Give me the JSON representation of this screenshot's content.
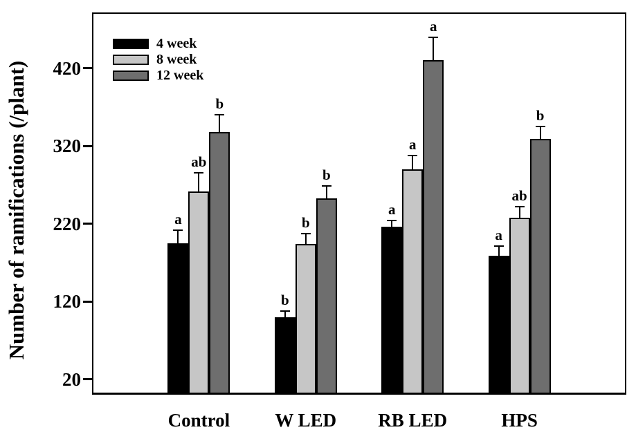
{
  "chart_data": {
    "type": "bar",
    "title": "",
    "xlabel": "",
    "ylabel": "Number of ramifications (/plant)",
    "categories": [
      "Control",
      "W LED",
      "RB LED",
      "HPS"
    ],
    "series": [
      {
        "name": "4 week",
        "color": "#000000",
        "values": [
          195,
          100,
          216,
          179
        ],
        "errors": [
          17,
          8,
          8,
          12
        ],
        "letters": [
          "a",
          "b",
          "a",
          "a"
        ]
      },
      {
        "name": "8 week",
        "color": "#c6c6c6",
        "values": [
          262,
          194,
          290,
          228
        ],
        "errors": [
          24,
          13,
          18,
          14
        ],
        "letters": [
          "ab",
          "b",
          "a",
          "ab"
        ]
      },
      {
        "name": "12 week",
        "color": "#6e6e6e",
        "values": [
          338,
          253,
          431,
          329
        ],
        "errors": [
          22,
          16,
          29,
          16
        ],
        "letters": [
          "b",
          "b",
          "a",
          "b"
        ]
      }
    ],
    "y_ticks": [
      20,
      120,
      220,
      320,
      420
    ],
    "ylim": [
      0,
      492
    ],
    "grid": false,
    "legend_position": "top-left",
    "frame_color": "#000000",
    "background_color": "#ffffff"
  }
}
